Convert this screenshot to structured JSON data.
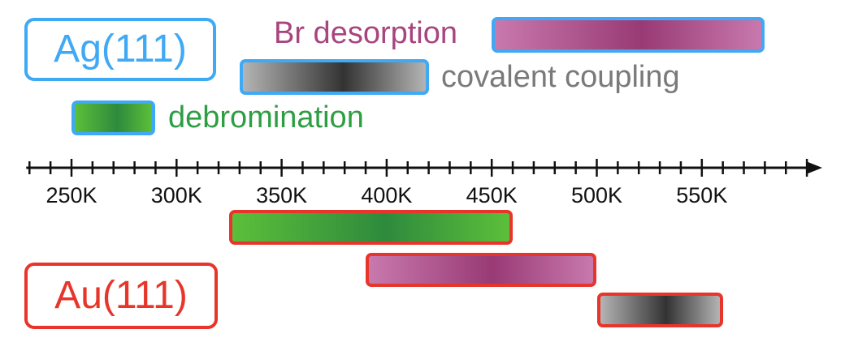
{
  "colors": {
    "ag_border": "#3fa9f5",
    "au_border": "#e8352b",
    "green_edge": "#5cbf3a",
    "green_mid": "#2e8a3c",
    "purple_edge": "#c879ad",
    "purple_mid": "#993a75",
    "gray_edge": "#b4b4b4",
    "gray_mid": "#333333",
    "green_text": "#2e9e43",
    "purple_text": "#a8447f",
    "gray_text": "#7a7a7a"
  },
  "labels": {
    "ag": "Ag(111)",
    "au": "Au(111)",
    "br_desorption": "Br desorption",
    "covalent_coupling": "covalent coupling",
    "debromination": "debromination"
  },
  "axis": {
    "unit_suffix": "K",
    "min": 230,
    "max": 600,
    "minor_step": 10,
    "major_step": 50,
    "ticks": [
      "250K",
      "300K",
      "350K",
      "400K",
      "450K",
      "500K",
      "550K"
    ],
    "tick_values": [
      250,
      300,
      350,
      400,
      450,
      500,
      550
    ]
  },
  "ranges": {
    "ag": [
      {
        "process": "debromination",
        "color": "green",
        "start": 250,
        "end": 290
      },
      {
        "process": "covalent coupling",
        "color": "gray",
        "start": 330,
        "end": 420
      },
      {
        "process": "Br desorption",
        "color": "purple",
        "start": 450,
        "end": 580
      }
    ],
    "au": [
      {
        "process": "debromination",
        "color": "green",
        "start": 325,
        "end": 460
      },
      {
        "process": "Br desorption",
        "color": "purple",
        "start": 390,
        "end": 500
      },
      {
        "process": "covalent coupling",
        "color": "gray",
        "start": 500,
        "end": 560
      }
    ]
  }
}
